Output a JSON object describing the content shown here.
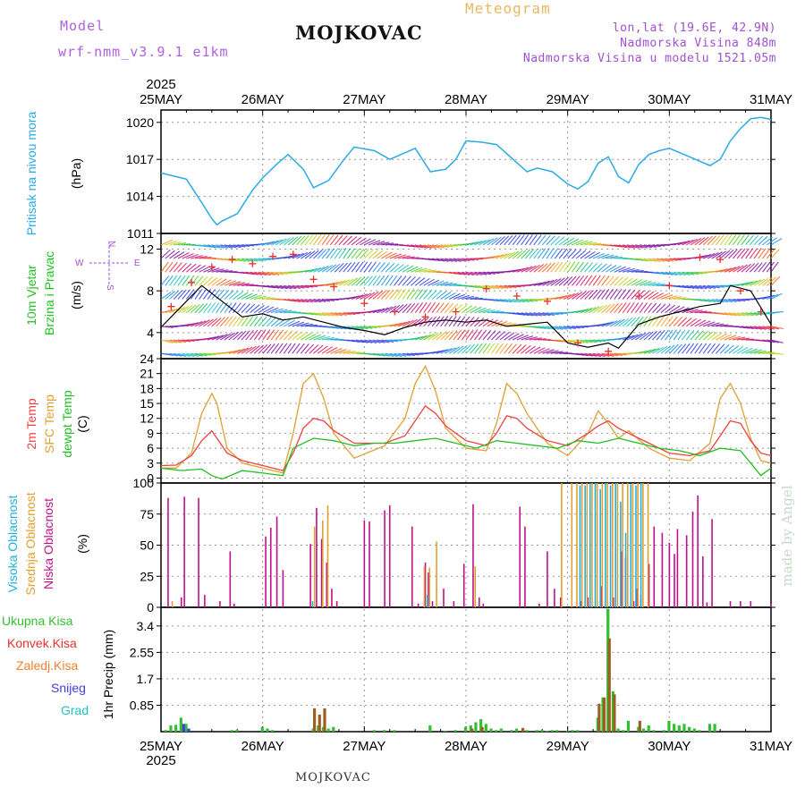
{
  "header": {
    "model_label": "Model",
    "model_name": "wrf-nmm_v3.9.1 e1km",
    "station": "MOJKOVAC",
    "product": "Meteogram",
    "coords": "lon,lat (19.6E, 42.9N)",
    "altitude": "Nadmorska Visina 848m",
    "model_altitude": "Nadmorska Visina u modelu 1521.05m",
    "year_top": "2025",
    "year_bottom": "2025"
  },
  "footer": {
    "station": "MOJKOVAC",
    "credit": "made by Angel"
  },
  "colors": {
    "pressure": "#2aaae8",
    "temp2m": "#f04040",
    "sfc": "#e0a030",
    "dew": "#22c022",
    "high_cloud": "#20b0e0",
    "mid_cloud": "#e0a030",
    "low_cloud": "#c0108a",
    "total_precip": "#30c030",
    "conv_precip": "#e83030",
    "frz_precip": "#f08030",
    "snow": "#4040e0",
    "graupel": "#20c0c0"
  },
  "x_axis": {
    "ticks": [
      "25MAY",
      "26MAY",
      "27MAY",
      "28MAY",
      "29MAY",
      "30MAY",
      "31MAY"
    ]
  },
  "panel_labels": {
    "pressure": [
      "Pritisak na nivou mora",
      "(hPa)"
    ],
    "wind": [
      "10m Vjetar",
      "Brzina i Pravac",
      "(m/s)"
    ],
    "compass": [
      "N",
      "S",
      "W",
      "E"
    ],
    "temp": [
      "2m Temp",
      "SFC Temp",
      "dewpt Temp",
      "(C)"
    ],
    "cloud": [
      "Visoka Oblacnost",
      "Srednja Oblacnost",
      "Niska Oblacnost",
      "(%)"
    ],
    "precip": [
      "Ukupna Kisa",
      "Konvek.Kisa",
      "Zaledj.Kisa",
      "Snijeg",
      "Grad",
      "1hr Precip (mm)"
    ]
  },
  "chart_data": [
    {
      "type": "line",
      "panel": "pressure",
      "ylabel": "(hPa)",
      "ylim": [
        1011,
        1021
      ],
      "yticks": [
        1011,
        1014,
        1017,
        1020
      ],
      "grid": true,
      "series": [
        {
          "name": "Pritisak na nivou mora",
          "x": [
            0,
            0.1,
            0.25,
            0.4,
            0.5,
            0.55,
            0.6,
            0.75,
            0.9,
            1.0,
            1.15,
            1.25,
            1.4,
            1.5,
            1.65,
            1.8,
            1.9,
            2.1,
            2.25,
            2.5,
            2.65,
            2.8,
            2.9,
            3.0,
            3.15,
            3.3,
            3.45,
            3.6,
            3.7,
            3.85,
            4.0,
            4.1,
            4.2,
            4.3,
            4.4,
            4.5,
            4.6,
            4.7,
            4.8,
            4.9,
            5.0,
            5.2,
            5.4,
            5.5,
            5.6,
            5.7,
            5.8,
            5.9,
            5.97,
            6.0
          ],
          "y": [
            1015.9,
            1015.7,
            1015.4,
            1013.5,
            1012.2,
            1011.7,
            1012.0,
            1012.6,
            1014.5,
            1015.5,
            1016.7,
            1017.4,
            1016.2,
            1014.7,
            1015.3,
            1017.0,
            1018.0,
            1017.7,
            1017.0,
            1017.9,
            1016.0,
            1016.2,
            1017.0,
            1018.5,
            1018.4,
            1018.2,
            1017.1,
            1016.0,
            1016.3,
            1016.0,
            1015.0,
            1014.6,
            1015.2,
            1016.7,
            1017.2,
            1015.6,
            1015.1,
            1016.6,
            1017.4,
            1017.7,
            1017.9,
            1017.2,
            1016.5,
            1017.0,
            1018.5,
            1019.5,
            1020.3,
            1020.4,
            1020.3,
            1020.2
          ]
        }
      ]
    },
    {
      "type": "line",
      "panel": "wind",
      "ylabel": "(m/s)",
      "ylim": [
        1.5,
        13.5
      ],
      "yticks": [
        4,
        8,
        12
      ],
      "grid": true,
      "series": [
        {
          "name": "mean wind",
          "x": [
            0,
            0.2,
            0.4,
            0.6,
            0.8,
            1.0,
            1.2,
            1.4,
            1.6,
            1.8,
            2.0,
            2.2,
            2.4,
            2.6,
            2.8,
            3.0,
            3.2,
            3.4,
            3.6,
            3.8,
            4.0,
            4.2,
            4.4,
            4.5,
            4.7,
            4.9,
            5.1,
            5.3,
            5.5,
            5.6,
            5.8,
            6.0
          ],
          "y": [
            4.5,
            6.5,
            8.5,
            7.0,
            5.5,
            5.8,
            5.2,
            5.5,
            5.0,
            4.5,
            4.2,
            3.8,
            4.5,
            5.0,
            5.2,
            5.0,
            5.2,
            4.6,
            4.8,
            5.0,
            3.0,
            2.6,
            3.0,
            2.5,
            4.8,
            5.5,
            6.0,
            6.5,
            6.8,
            8.5,
            8.0,
            4.8
          ]
        },
        {
          "name": "gust",
          "x": [
            0.1,
            0.3,
            0.5,
            0.7,
            0.9,
            1.1,
            1.3,
            1.5,
            1.7,
            2.0,
            2.3,
            2.6,
            2.9,
            3.2,
            3.5,
            3.8,
            4.1,
            4.4,
            4.7,
            5.0,
            5.3,
            5.5,
            5.7,
            5.9
          ],
          "y": [
            6.5,
            8.8,
            10.3,
            11.0,
            10.6,
            11.3,
            11.5,
            9.1,
            8.4,
            6.8,
            6.0,
            5.5,
            6.0,
            8.2,
            7.5,
            7.0,
            3.0,
            2.2,
            7.5,
            8.5,
            11.2,
            11.0,
            8.0,
            6.0
          ]
        }
      ]
    },
    {
      "type": "line",
      "panel": "temp",
      "ylabel": "(C)",
      "ylim": [
        -1,
        24
      ],
      "yticks": [
        0,
        3,
        6,
        9,
        12,
        15,
        18,
        21,
        24
      ],
      "grid": true,
      "series": [
        {
          "name": "2m Temp",
          "x": [
            0,
            0.15,
            0.3,
            0.4,
            0.5,
            0.55,
            0.65,
            0.8,
            1.0,
            1.2,
            1.3,
            1.4,
            1.5,
            1.6,
            1.7,
            1.9,
            2.2,
            2.4,
            2.5,
            2.6,
            2.7,
            2.8,
            3.0,
            3.2,
            3.3,
            3.4,
            3.5,
            3.6,
            3.8,
            4.0,
            4.2,
            4.3,
            4.4,
            4.5,
            4.6,
            4.8,
            5.0,
            5.2,
            5.4,
            5.5,
            5.6,
            5.7,
            5.8,
            5.9,
            6.0
          ],
          "y": [
            2.5,
            2.6,
            4.5,
            7.5,
            9.5,
            8.0,
            5.0,
            3.5,
            2.5,
            1.5,
            5.0,
            10.0,
            12.0,
            11.5,
            9.5,
            7.0,
            7.0,
            8.5,
            11.5,
            14.5,
            13.0,
            10.5,
            7.5,
            6.5,
            9.0,
            12.5,
            12.0,
            10.0,
            7.5,
            6.5,
            9.0,
            10.5,
            11.5,
            10.0,
            9.0,
            7.0,
            5.0,
            4.5,
            5.5,
            8.5,
            11.5,
            11.0,
            7.5,
            5.0,
            4.5
          ]
        },
        {
          "name": "SFC Temp",
          "x": [
            0,
            0.15,
            0.3,
            0.4,
            0.5,
            0.55,
            0.65,
            0.8,
            1.0,
            1.2,
            1.3,
            1.4,
            1.5,
            1.6,
            1.7,
            1.9,
            2.2,
            2.4,
            2.5,
            2.6,
            2.7,
            2.8,
            3.0,
            3.2,
            3.3,
            3.4,
            3.5,
            3.6,
            3.8,
            4.0,
            4.2,
            4.3,
            4.4,
            4.5,
            4.6,
            4.8,
            5.0,
            5.2,
            5.4,
            5.5,
            5.6,
            5.7,
            5.8,
            5.9,
            6.0
          ],
          "y": [
            2.0,
            2.0,
            5.0,
            13.0,
            17.0,
            15.0,
            6.0,
            3.0,
            2.0,
            1.0,
            9.0,
            19.0,
            21.0,
            16.0,
            9.0,
            4.0,
            6.5,
            12.0,
            19.0,
            22.5,
            17.5,
            10.0,
            6.0,
            5.5,
            11.0,
            19.0,
            17.0,
            13.0,
            7.0,
            4.5,
            9.0,
            13.5,
            11.0,
            8.0,
            9.5,
            6.0,
            4.0,
            3.5,
            7.0,
            16.0,
            19.0,
            15.0,
            8.0,
            3.5,
            3.0
          ]
        },
        {
          "name": "dewpt Temp",
          "x": [
            0,
            0.2,
            0.4,
            0.5,
            0.6,
            0.8,
            1.0,
            1.2,
            1.3,
            1.5,
            1.7,
            1.9,
            2.1,
            2.3,
            2.5,
            2.7,
            2.9,
            3.1,
            3.3,
            3.5,
            3.7,
            3.9,
            4.1,
            4.3,
            4.5,
            4.7,
            4.9,
            5.1,
            5.3,
            5.5,
            5.7,
            5.8,
            5.9,
            6.0
          ],
          "y": [
            2.0,
            1.5,
            1.8,
            0.5,
            -0.2,
            1.5,
            1.0,
            0.5,
            6.0,
            8.0,
            7.5,
            6.5,
            7.0,
            7.0,
            7.5,
            8.0,
            7.0,
            6.0,
            7.5,
            7.0,
            6.5,
            6.0,
            7.5,
            7.0,
            8.0,
            7.0,
            6.0,
            5.5,
            4.5,
            6.0,
            5.5,
            3.0,
            0.5,
            2.0
          ]
        }
      ]
    },
    {
      "type": "bar",
      "panel": "cloud",
      "ylabel": "(%)",
      "ylim": [
        0,
        100
      ],
      "yticks": [
        0,
        25,
        50,
        75,
        100
      ],
      "grid": true,
      "series": [
        {
          "name": "Niska Oblacnost",
          "x": [
            0.07,
            0.2,
            0.23,
            0.37,
            0.43,
            0.58,
            0.68,
            0.72,
            1.03,
            1.08,
            1.14,
            1.2,
            1.47,
            1.53,
            1.58,
            1.63,
            1.68,
            1.73,
            2.0,
            2.05,
            2.2,
            2.25,
            2.47,
            2.53,
            2.6,
            2.63,
            2.67,
            2.78,
            2.88,
            2.98,
            3.07,
            3.13,
            3.17,
            3.53,
            3.58,
            3.72,
            3.8,
            3.87,
            3.93,
            4.13,
            4.2,
            4.33,
            4.45,
            4.53,
            4.57,
            4.65,
            4.68,
            4.72,
            4.8,
            4.85,
            4.93,
            5.0,
            5.05,
            5.08,
            5.17,
            5.23,
            5.28,
            5.33,
            5.37,
            5.42,
            5.6,
            5.7,
            5.8,
            6.0
          ],
          "y": [
            88,
            8,
            89,
            88,
            10,
            5,
            45,
            3,
            57,
            64,
            73,
            30,
            51,
            80,
            55,
            36,
            15,
            5,
            70,
            69,
            78,
            82,
            65,
            3,
            36,
            28,
            5,
            15,
            5,
            35,
            83,
            8,
            3,
            81,
            65,
            3,
            45,
            15,
            8,
            5,
            8,
            17,
            8,
            45,
            40,
            5,
            15,
            10,
            35,
            65,
            60,
            52,
            43,
            63,
            58,
            77,
            90,
            41,
            4,
            71,
            5,
            5,
            5,
            3
          ]
        },
        {
          "name": "Srednja Oblacnost",
          "x": [
            0.1,
            1.5,
            1.58,
            1.63,
            2.58,
            2.63,
            2.7,
            3.08,
            3.93,
            4.03,
            4.08,
            4.13,
            4.18,
            4.23,
            4.28,
            4.33,
            4.38,
            4.43,
            4.48,
            4.53,
            4.58,
            4.63,
            4.68,
            4.73,
            4.78
          ],
          "y": [
            5,
            65,
            70,
            82,
            33,
            32,
            53,
            33,
            100,
            100,
            100,
            100,
            100,
            100,
            100,
            100,
            100,
            100,
            100,
            100,
            100,
            100,
            100,
            100,
            100
          ]
        },
        {
          "name": "Visoka Oblacnost",
          "x": [
            1.47,
            2.6,
            4.1,
            4.15,
            4.2,
            4.25,
            4.3,
            4.35,
            4.4,
            4.45,
            4.5,
            4.55,
            4.6,
            4.65,
            4.7
          ],
          "y": [
            5,
            10,
            98,
            98,
            100,
            100,
            95,
            100,
            98,
            100,
            85,
            60,
            99,
            98,
            100
          ]
        }
      ]
    },
    {
      "type": "bar",
      "panel": "precip",
      "ylabel": "1hr Precip (mm)",
      "ylim": [
        0,
        4
      ],
      "yticks": [
        0.85,
        1.7,
        2.55,
        3.4
      ],
      "grid": true,
      "series": [
        {
          "name": "Ukupna Kisa",
          "x": [
            0.05,
            0.1,
            0.15,
            0.2,
            0.25,
            0.7,
            0.75,
            1.0,
            1.05,
            1.1,
            1.5,
            1.55,
            1.6,
            1.65,
            1.7,
            2.1,
            2.2,
            2.3,
            2.65,
            2.8,
            2.9,
            3.0,
            3.05,
            3.1,
            3.15,
            3.2,
            3.25,
            3.3,
            3.35,
            3.45,
            3.5,
            3.6,
            3.7,
            3.75,
            3.8,
            3.85,
            3.9,
            4.0,
            4.05,
            4.1,
            4.3,
            4.35,
            4.4,
            4.45,
            4.5,
            4.55,
            4.6,
            4.7,
            4.75,
            4.8,
            4.85,
            4.95,
            5.0,
            5.05,
            5.1,
            5.15,
            5.2,
            5.25,
            5.3,
            5.4,
            5.45
          ],
          "y": [
            0.05,
            0.2,
            0.22,
            0.45,
            0.25,
            0.05,
            0.05,
            0.15,
            0.1,
            0.05,
            0.1,
            0.2,
            0.15,
            0.1,
            0.15,
            0.05,
            0.05,
            0.05,
            0.2,
            0.02,
            0.05,
            0.15,
            0.2,
            0.3,
            0.4,
            0.25,
            0.1,
            0.05,
            0.1,
            0.05,
            0.1,
            0.05,
            0.05,
            0.05,
            0.02,
            0.05,
            0.05,
            0.02,
            0.05,
            0.05,
            0.45,
            1.1,
            3.95,
            1.3,
            0.1,
            0.05,
            0.35,
            0.15,
            0.1,
            0.2,
            0.05,
            0.05,
            0.35,
            0.25,
            0.2,
            0.25,
            0.15,
            0.1,
            0.05,
            0.25,
            0.25
          ]
        },
        {
          "name": "Konvek.Kisa",
          "x": [
            1.5,
            1.55,
            1.6,
            3.05,
            3.15,
            3.55,
            4.3,
            4.35,
            4.4,
            4.45,
            4.7
          ],
          "y": [
            0.75,
            0.55,
            0.75,
            0.1,
            0.15,
            0.12,
            0.9,
            1.1,
            3.0,
            1.2,
            0.35
          ]
        },
        {
          "name": "Snijeg",
          "x": [
            0.2,
            0.25
          ],
          "y": [
            0.25,
            0.1
          ]
        }
      ]
    },
    {
      "type": "scatter",
      "panel": "wind",
      "name": "wind barbs",
      "note": "wind direction arrows colored by speed",
      "ylim": [
        1.5,
        13.5
      ]
    }
  ]
}
